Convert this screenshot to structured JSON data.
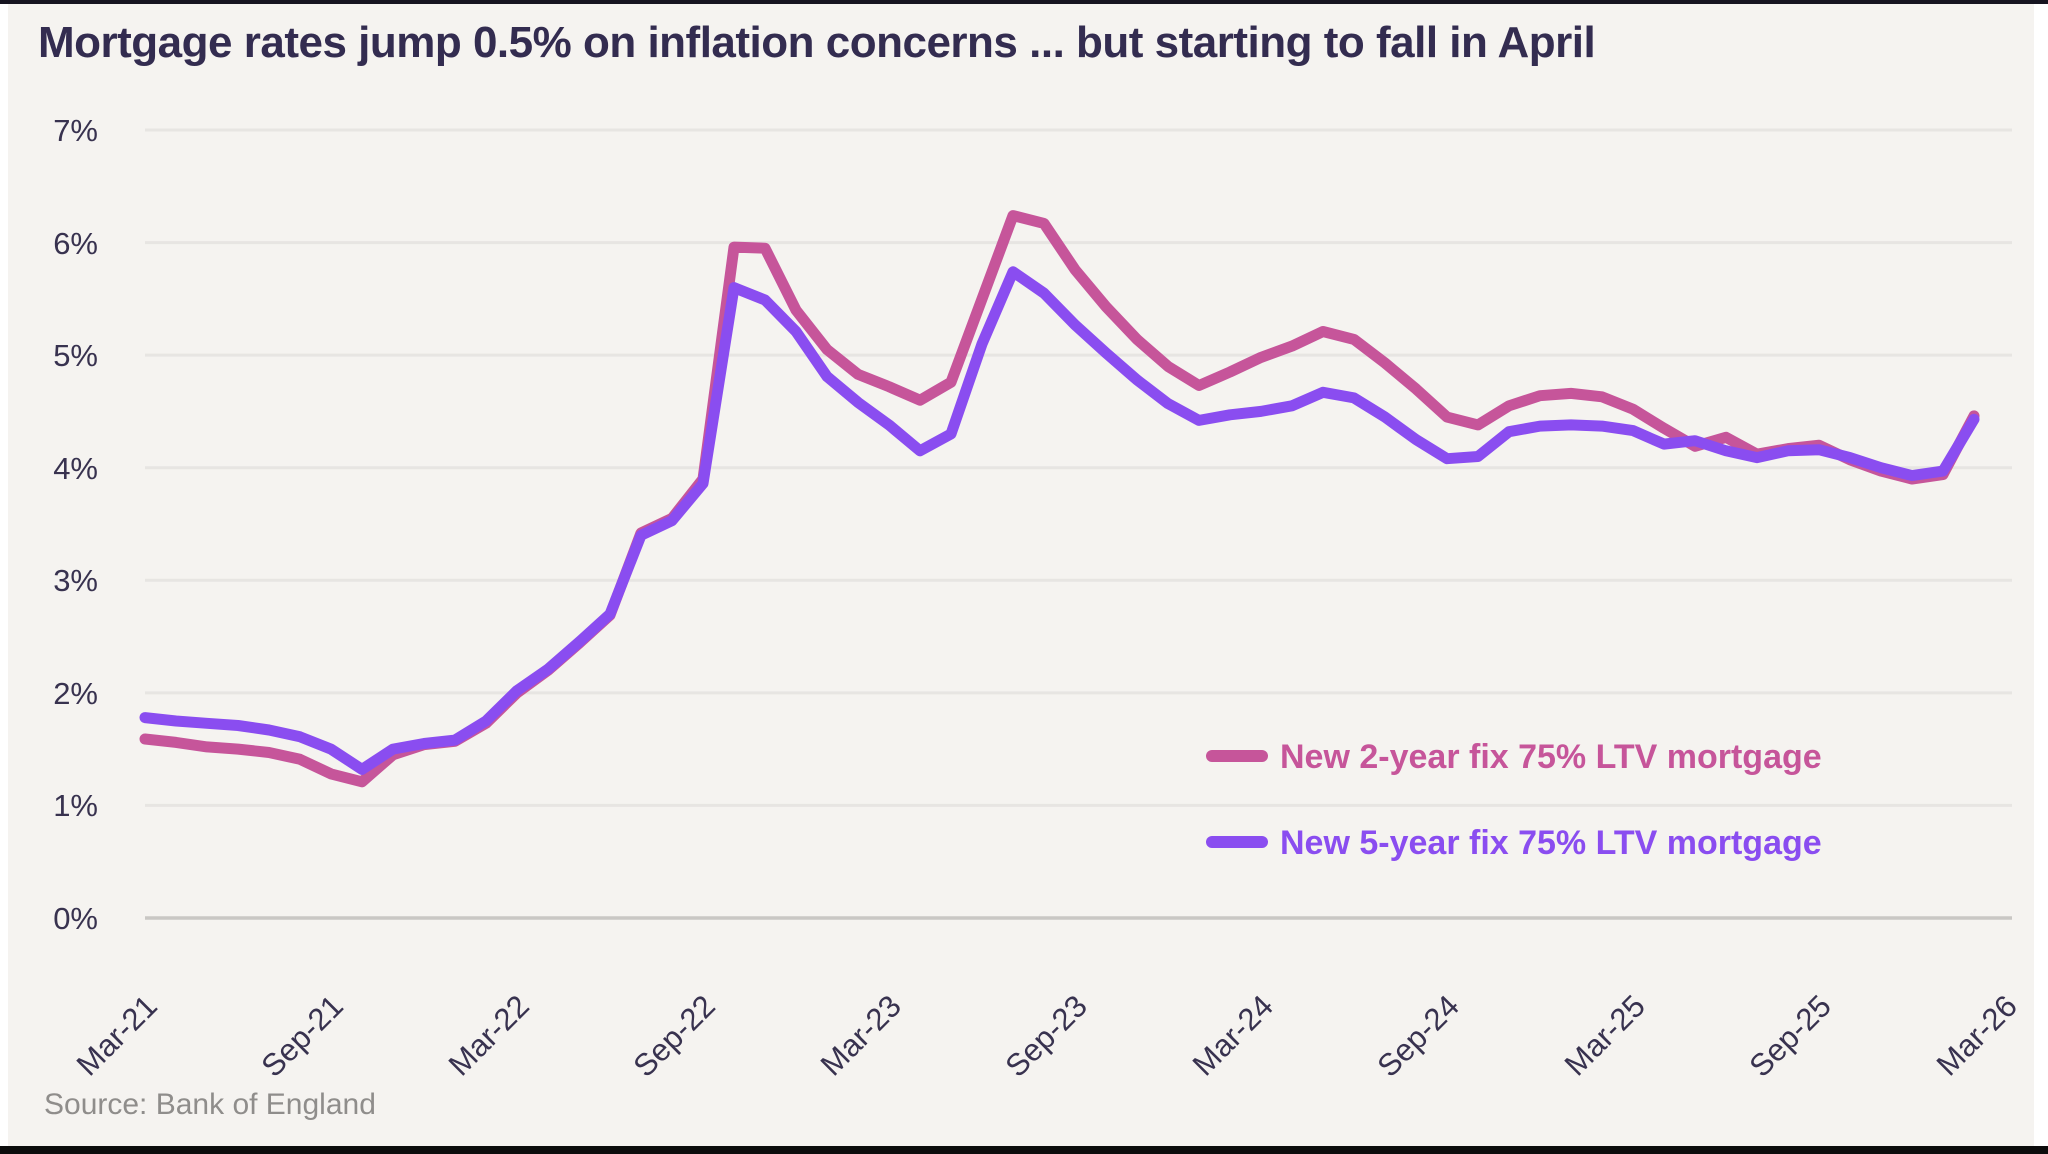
{
  "title": "Mortgage rates jump 0.5% on inflation concerns ... but starting to fall in April",
  "source_note": "Source: Bank of England",
  "colors": {
    "series_2yr": "#c6559a",
    "series_5yr": "#8a4df0",
    "title_text": "#332c50",
    "axis_text": "#38324f",
    "gridline": "#e7e5e2",
    "card_background": "#f5f3f0",
    "source_text": "#8f8d8b"
  },
  "chart_data": {
    "type": "line",
    "title": "Mortgage rates jump 0.5% on inflation concerns ... but starting to fall in April",
    "xlabel": "",
    "ylabel": "",
    "ylim": [
      0,
      7
    ],
    "grid": "horizontal",
    "legend_position": "inside bottom-right",
    "y_ticks": [
      "7%",
      "6%",
      "5%",
      "4%",
      "3%",
      "2%",
      "1%",
      "0%"
    ],
    "x_tick_labels": [
      "Mar-21",
      "Sep-21",
      "Mar-22",
      "Sep-22",
      "Mar-23",
      "Sep-23",
      "Mar-24",
      "Sep-24",
      "Mar-25",
      "Sep-25",
      "Mar-26"
    ],
    "categories": [
      "Mar-21",
      "Apr-21",
      "May-21",
      "Jun-21",
      "Jul-21",
      "Aug-21",
      "Sep-21",
      "Oct-21",
      "Nov-21",
      "Dec-21",
      "Jan-22",
      "Feb-22",
      "Mar-22",
      "Apr-22",
      "May-22",
      "Jun-22",
      "Jul-22",
      "Aug-22",
      "Sep-22",
      "Oct-22",
      "Nov-22",
      "Dec-22",
      "Jan-23",
      "Feb-23",
      "Mar-23",
      "Apr-23",
      "May-23",
      "Jun-23",
      "Jul-23",
      "Aug-23",
      "Sep-23",
      "Oct-23",
      "Nov-23",
      "Dec-23",
      "Jan-24",
      "Feb-24",
      "Mar-24",
      "Apr-24",
      "May-24",
      "Jun-24",
      "Jul-24",
      "Aug-24",
      "Sep-24",
      "Oct-24",
      "Nov-24",
      "Dec-24",
      "Jan-25",
      "Feb-25",
      "Mar-25",
      "Apr-25",
      "May-25",
      "Jun-25",
      "Jul-25",
      "Aug-25",
      "Sep-25",
      "Oct-25",
      "Nov-25",
      "Dec-25",
      "Jan-26",
      "Feb-26"
    ],
    "unit": "percent",
    "series": [
      {
        "name": "New 2-year fix 75% LTV mortgage",
        "color_key": "series_2yr",
        "values": [
          1.59,
          1.56,
          1.52,
          1.5,
          1.47,
          1.41,
          1.28,
          1.21,
          1.45,
          1.54,
          1.57,
          1.73,
          2.0,
          2.2,
          2.44,
          2.69,
          3.42,
          3.55,
          3.9,
          5.96,
          5.95,
          5.4,
          5.05,
          4.83,
          4.72,
          4.6,
          4.76,
          5.5,
          6.24,
          6.17,
          5.76,
          5.43,
          5.14,
          4.9,
          4.73,
          4.85,
          4.98,
          5.08,
          5.21,
          5.14,
          4.93,
          4.7,
          4.45,
          4.38,
          4.55,
          4.64,
          4.66,
          4.63,
          4.52,
          4.35,
          4.19,
          4.27,
          4.12,
          4.17,
          4.2,
          4.07,
          3.97,
          3.9,
          3.94,
          4.46
        ]
      },
      {
        "name": "New 5-year fix 75% LTV mortgage",
        "color_key": "series_5yr",
        "values": [
          1.78,
          1.75,
          1.73,
          1.71,
          1.67,
          1.61,
          1.5,
          1.32,
          1.5,
          1.55,
          1.58,
          1.75,
          2.02,
          2.21,
          2.45,
          2.7,
          3.4,
          3.53,
          3.86,
          5.6,
          5.49,
          5.21,
          4.81,
          4.58,
          4.38,
          4.15,
          4.3,
          5.1,
          5.74,
          5.55,
          5.27,
          5.02,
          4.78,
          4.57,
          4.42,
          4.47,
          4.5,
          4.55,
          4.67,
          4.62,
          4.45,
          4.25,
          4.08,
          4.1,
          4.32,
          4.37,
          4.38,
          4.37,
          4.33,
          4.21,
          4.24,
          4.15,
          4.09,
          4.15,
          4.16,
          4.09,
          4.0,
          3.93,
          3.97,
          4.43
        ]
      }
    ]
  }
}
